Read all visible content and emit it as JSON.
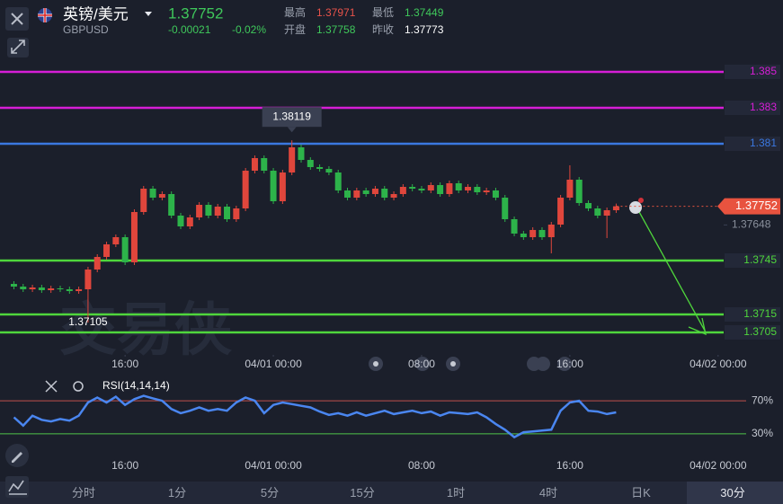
{
  "header": {
    "symbol": "英镑/美元",
    "code": "GBPUSD",
    "price": "1.37752",
    "change": "-0.00021",
    "change_pct": "-0.02%",
    "stats": [
      {
        "label": "最高",
        "value": "1.37971"
      },
      {
        "label": "开盘",
        "value": "1.37758"
      },
      {
        "label": "最低",
        "value": "1.37449"
      },
      {
        "label": "昨收",
        "value": "1.37773"
      }
    ]
  },
  "watermark": "交易侠",
  "tabs": [
    "分时",
    "1分",
    "5分",
    "15分",
    "1时",
    "4时",
    "日K",
    "30分"
  ],
  "chart_data": [
    {
      "type": "candlestick",
      "open": [
        1.3732,
        1.37305,
        1.3729,
        1.373,
        1.37285,
        1.37295,
        1.3729,
        1.3728,
        1.3729,
        1.374,
        1.3747,
        1.3754,
        1.3758,
        1.3744,
        1.3772,
        1.3785,
        1.378,
        1.3782,
        1.377,
        1.3764,
        1.3769,
        1.3776,
        1.377,
        1.3775,
        1.3768,
        1.3774,
        1.3795,
        1.3802,
        1.3795,
        1.3778,
        1.3794,
        1.3808,
        1.3801,
        1.3797,
        1.3796,
        1.3794,
        1.3784,
        1.378,
        1.3784,
        1.3782,
        1.3785,
        1.378,
        1.3782,
        1.3786,
        1.3785,
        1.3784,
        1.3787,
        1.3782,
        1.3788,
        1.3784,
        1.3786,
        1.3783,
        1.3784,
        1.378,
        1.3768,
        1.376,
        1.3758,
        1.3762,
        1.3758,
        1.3765,
        1.378,
        1.379,
        1.3777,
        1.3774,
        1.377,
        1.3773
      ],
      "high": [
        1.37335,
        1.3732,
        1.37315,
        1.37315,
        1.3731,
        1.3731,
        1.37305,
        1.37305,
        1.37415,
        1.37485,
        1.37555,
        1.37595,
        1.37595,
        1.37735,
        1.37865,
        1.37865,
        1.37835,
        1.37835,
        1.37715,
        1.37705,
        1.37775,
        1.37775,
        1.37765,
        1.37765,
        1.37755,
        1.37965,
        1.38035,
        1.38035,
        1.37965,
        1.37955,
        1.38119,
        1.38095,
        1.38025,
        1.37985,
        1.37975,
        1.37955,
        1.37855,
        1.37855,
        1.37855,
        1.37865,
        1.37865,
        1.37835,
        1.37875,
        1.37875,
        1.37865,
        1.37885,
        1.37885,
        1.37895,
        1.37895,
        1.37875,
        1.37875,
        1.37855,
        1.37855,
        1.37815,
        1.37695,
        1.37615,
        1.37635,
        1.37635,
        1.37665,
        1.37815,
        1.3798,
        1.37915,
        1.37785,
        1.37755,
        1.37745,
        1.37767
      ],
      "low": [
        1.3729,
        1.37275,
        1.37275,
        1.3727,
        1.3727,
        1.37275,
        1.37265,
        1.37265,
        1.37105,
        1.37385,
        1.37455,
        1.37525,
        1.37425,
        1.37425,
        1.37705,
        1.37785,
        1.37785,
        1.37685,
        1.37625,
        1.37625,
        1.37675,
        1.37685,
        1.37685,
        1.37665,
        1.37665,
        1.37725,
        1.37935,
        1.37935,
        1.37765,
        1.37765,
        1.37925,
        1.37995,
        1.37955,
        1.37945,
        1.37925,
        1.37825,
        1.37785,
        1.37785,
        1.37805,
        1.37805,
        1.37785,
        1.37785,
        1.37805,
        1.37835,
        1.37825,
        1.37825,
        1.37805,
        1.37805,
        1.37825,
        1.37825,
        1.37815,
        1.37815,
        1.37785,
        1.37665,
        1.37585,
        1.37565,
        1.37565,
        1.37565,
        1.3749,
        1.37635,
        1.37785,
        1.37755,
        1.37725,
        1.37685,
        1.37575,
        1.37715
      ],
      "close": [
        1.37305,
        1.3729,
        1.373,
        1.37285,
        1.37295,
        1.3729,
        1.3728,
        1.3729,
        1.374,
        1.3747,
        1.3754,
        1.3758,
        1.3744,
        1.3772,
        1.3785,
        1.378,
        1.3782,
        1.377,
        1.3764,
        1.3769,
        1.3776,
        1.377,
        1.3775,
        1.3768,
        1.3774,
        1.3795,
        1.3802,
        1.3795,
        1.3778,
        1.3794,
        1.3808,
        1.3801,
        1.3797,
        1.3796,
        1.3794,
        1.3784,
        1.378,
        1.3784,
        1.3782,
        1.3785,
        1.378,
        1.3782,
        1.3786,
        1.3785,
        1.3784,
        1.3787,
        1.3782,
        1.3788,
        1.3784,
        1.3786,
        1.3783,
        1.3784,
        1.378,
        1.3768,
        1.376,
        1.3758,
        1.3762,
        1.3758,
        1.3765,
        1.378,
        1.379,
        1.3777,
        1.3774,
        1.377,
        1.3773,
        1.37752
      ],
      "up_color": "#e0463c",
      "down_color": "#2db34a",
      "xlim": [
        -1.5,
        76.6
      ],
      "ylim": [
        1.36925,
        1.386
      ],
      "xticks": [
        {
          "value": 12,
          "label": "16:00"
        },
        {
          "value": 28,
          "label": "04/01 00:00"
        },
        {
          "value": 44,
          "label": "08:00"
        },
        {
          "value": 60,
          "label": "16:00"
        },
        {
          "value": 76,
          "label": "04/02 00:00"
        }
      ],
      "yticks": [
        1.37648
      ],
      "levels": [
        {
          "value": 1.385,
          "color": "#d61ed6"
        },
        {
          "value": 1.383,
          "color": "#d61ed6"
        },
        {
          "value": 1.381,
          "color": "#3b78e0"
        },
        {
          "value": 1.3745,
          "color": "#4fd63c"
        },
        {
          "value": 1.3715,
          "color": "#4fd63c"
        },
        {
          "value": 1.3705,
          "color": "#4fd63c"
        }
      ],
      "max_index": 30,
      "min_index": 8
    },
    {
      "type": "line",
      "title": "RSI(14,14,14)",
      "color": "#4a86f0",
      "values": [
        50,
        40,
        52,
        47,
        45,
        48,
        46,
        52,
        68,
        74,
        68,
        75,
        65,
        72,
        76,
        73,
        70,
        60,
        55,
        58,
        62,
        58,
        60,
        58,
        68,
        74,
        70,
        55,
        65,
        68,
        66,
        64,
        62,
        57,
        53,
        55,
        52,
        56,
        52,
        55,
        58,
        54,
        56,
        58,
        55,
        57,
        52,
        56,
        55,
        54,
        56,
        50,
        42,
        35,
        26,
        32,
        33,
        34,
        35,
        58,
        68,
        70,
        58,
        57,
        54,
        56
      ],
      "xlim": [
        -1.5,
        76.6
      ],
      "ylim": [
        6,
        93
      ],
      "yticks": [
        {
          "value": 70,
          "label": "70%",
          "color": "#c0504d"
        },
        {
          "value": 30,
          "label": "30%",
          "color": "#4fc34a"
        }
      ]
    }
  ]
}
